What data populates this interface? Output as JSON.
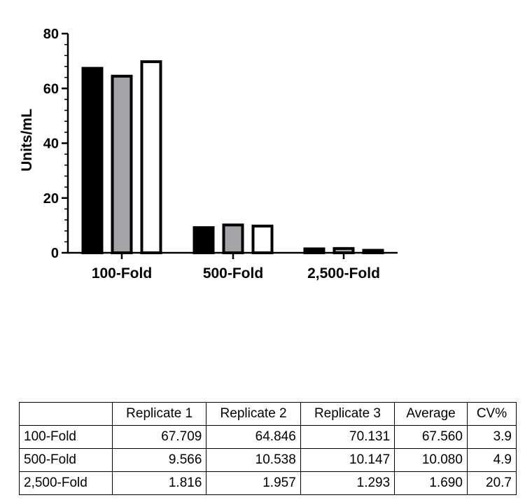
{
  "chart_data": {
    "type": "bar",
    "categories": [
      "100-Fold",
      "500-Fold",
      "2,500-Fold"
    ],
    "series": [
      {
        "values": [
          67.709,
          9.566,
          1.816
        ]
      },
      {
        "values": [
          64.846,
          10.538,
          1.957
        ]
      },
      {
        "values": [
          70.131,
          10.147,
          1.293
        ]
      }
    ],
    "series_fills": [
      "#000000",
      "#a3a3a8",
      "#ffffff"
    ],
    "ylabel": "Units/mL",
    "ylim": [
      0,
      80
    ],
    "yticks": [
      "0",
      "20",
      "40",
      "60",
      "80"
    ],
    "grid": false,
    "legend": "none"
  },
  "table": {
    "headers": [
      "",
      "Replicate 1",
      "Replicate 2",
      "Replicate 3",
      "Average",
      "CV%"
    ],
    "rows": [
      [
        "100-Fold",
        "67.709",
        "64.846",
        "70.131",
        "67.560",
        "3.9"
      ],
      [
        "500-Fold",
        "9.566",
        "10.538",
        "10.147",
        "10.080",
        "4.9"
      ],
      [
        "2,500-Fold",
        "1.816",
        "1.957",
        "1.293",
        "1.690",
        "20.7"
      ]
    ]
  }
}
